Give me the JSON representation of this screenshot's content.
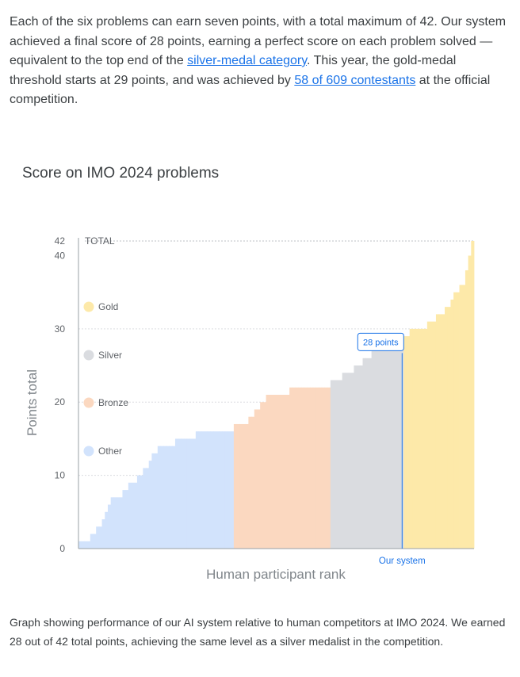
{
  "intro": {
    "t1": "Each of the six problems can earn seven points, with a total maximum of 42. Our system achieved a final score of 28 points, earning a perfect score on each problem solved — equivalent to the top end of the ",
    "link1": "silver-medal category",
    "t2": ". This year, the gold-medal threshold starts at 29 points, and was achieved by ",
    "link2": "58 of 609 contestants",
    "t3": " at the official competition."
  },
  "caption": "Graph showing performance of our AI system relative to human competitors at IMO 2024. We earned 28 out of 42 total points, achieving the same level as a silver medalist in the competition.",
  "chart_data": {
    "type": "area",
    "title": "Score on IMO 2024 problems",
    "xlabel": "Human participant rank",
    "ylabel": "Points total",
    "ylim": [
      0,
      42
    ],
    "yticks": [
      "0",
      "10",
      "20",
      "30",
      "40",
      "42"
    ],
    "total_label": "TOTAL",
    "legend": [
      {
        "name": "Gold",
        "color": "#fde9a9"
      },
      {
        "name": "Silver",
        "color": "#dadce0"
      },
      {
        "name": "Bronze",
        "color": "#fbd8c0"
      },
      {
        "name": "Other",
        "color": "#d2e3fc"
      }
    ],
    "series": [
      {
        "name": "Other",
        "color": "#d2e3fc",
        "values": [
          1,
          1,
          1,
          1,
          2,
          2,
          3,
          3,
          4,
          5,
          6,
          7,
          7,
          7,
          7,
          8,
          8,
          9,
          9,
          9,
          10,
          10,
          11,
          11,
          12,
          13,
          13,
          14,
          14,
          14,
          14,
          14,
          14,
          15,
          15,
          15,
          15,
          15,
          15,
          15,
          16,
          16,
          16,
          16,
          16,
          16,
          16,
          16,
          16,
          16,
          16,
          16,
          16
        ]
      },
      {
        "name": "Bronze",
        "color": "#fbd8c0",
        "values": [
          17,
          17,
          17,
          17,
          17,
          18,
          18,
          19,
          19,
          20,
          20,
          21,
          21,
          21,
          21,
          21,
          21,
          21,
          21,
          22,
          22,
          22,
          22,
          22,
          22,
          22,
          22,
          22,
          22,
          22,
          22,
          22,
          22
        ]
      },
      {
        "name": "Silver",
        "color": "#dadce0",
        "values": [
          23,
          23,
          23,
          23,
          24,
          24,
          24,
          24,
          25,
          25,
          25,
          26,
          26,
          26,
          27,
          27,
          28,
          28,
          28,
          28,
          28,
          28,
          28,
          28,
          28
        ]
      },
      {
        "name": "Gold",
        "color": "#fde9a9",
        "values": [
          29,
          29,
          30,
          30,
          30,
          30,
          30,
          30,
          31,
          31,
          31,
          32,
          32,
          32,
          33,
          33,
          34,
          35,
          35,
          36,
          36,
          38,
          40,
          42
        ]
      }
    ],
    "marker": {
      "label": "28 points",
      "caption": "Our system",
      "value": 28,
      "color": "#1a73e8"
    }
  }
}
